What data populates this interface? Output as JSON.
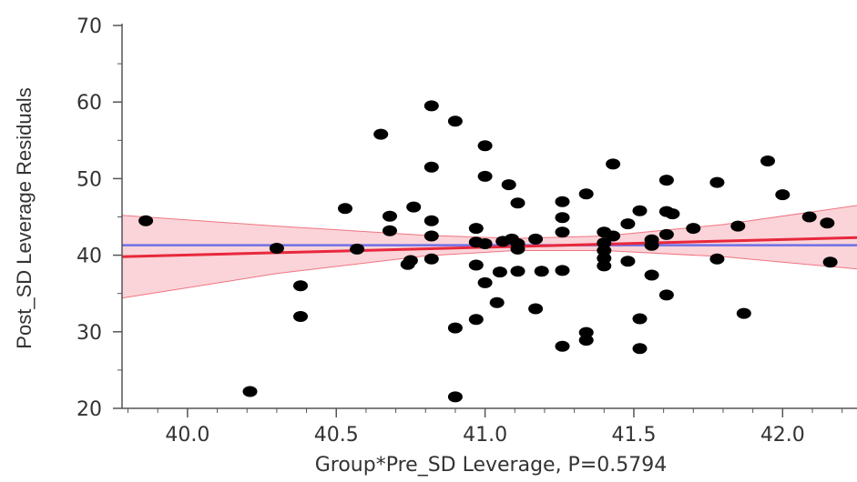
{
  "chart_data": {
    "type": "scatter",
    "title": "",
    "xlabel": "Group*Pre_SD Leverage, P=0.5794",
    "ylabel": "Post_SD Leverage Residuals",
    "xlim": [
      39.78,
      42.25
    ],
    "ylim": [
      20,
      70
    ],
    "xticks": [
      40.0,
      40.5,
      41.0,
      41.5,
      42.0
    ],
    "xtick_labels": [
      "40.0",
      "40.5",
      "41.0",
      "41.5",
      "42.0"
    ],
    "yticks": [
      20,
      30,
      40,
      50,
      60,
      70
    ],
    "ytick_labels": [
      "20",
      "30",
      "40",
      "50",
      "60",
      "70"
    ],
    "grid": false,
    "colors": {
      "points": "#000000",
      "fit_line": "#e8283c",
      "mean_line": "#6f6fe6",
      "confidence_band": "#f5a0ab"
    },
    "points": [
      {
        "x": 39.86,
        "y": 44.5
      },
      {
        "x": 40.21,
        "y": 22.2
      },
      {
        "x": 40.3,
        "y": 40.9
      },
      {
        "x": 40.38,
        "y": 36.0
      },
      {
        "x": 40.38,
        "y": 32.0
      },
      {
        "x": 40.53,
        "y": 46.1
      },
      {
        "x": 40.57,
        "y": 40.8
      },
      {
        "x": 40.65,
        "y": 55.8
      },
      {
        "x": 40.68,
        "y": 45.1
      },
      {
        "x": 40.68,
        "y": 43.2
      },
      {
        "x": 40.74,
        "y": 38.8
      },
      {
        "x": 40.75,
        "y": 39.3
      },
      {
        "x": 40.76,
        "y": 46.3
      },
      {
        "x": 40.82,
        "y": 59.5
      },
      {
        "x": 40.82,
        "y": 51.5
      },
      {
        "x": 40.82,
        "y": 44.5
      },
      {
        "x": 40.82,
        "y": 42.5
      },
      {
        "x": 40.82,
        "y": 39.5
      },
      {
        "x": 40.9,
        "y": 57.5
      },
      {
        "x": 40.9,
        "y": 30.5
      },
      {
        "x": 40.9,
        "y": 21.5
      },
      {
        "x": 40.97,
        "y": 43.5
      },
      {
        "x": 40.97,
        "y": 41.7
      },
      {
        "x": 40.97,
        "y": 38.7
      },
      {
        "x": 40.97,
        "y": 31.6
      },
      {
        "x": 41.0,
        "y": 54.3
      },
      {
        "x": 41.0,
        "y": 50.3
      },
      {
        "x": 41.0,
        "y": 41.5
      },
      {
        "x": 41.0,
        "y": 36.4
      },
      {
        "x": 41.04,
        "y": 33.8
      },
      {
        "x": 41.05,
        "y": 37.8
      },
      {
        "x": 41.06,
        "y": 41.8
      },
      {
        "x": 41.08,
        "y": 49.2
      },
      {
        "x": 41.09,
        "y": 42.1
      },
      {
        "x": 41.11,
        "y": 46.8
      },
      {
        "x": 41.11,
        "y": 41.5
      },
      {
        "x": 41.11,
        "y": 40.8
      },
      {
        "x": 41.11,
        "y": 37.9
      },
      {
        "x": 41.17,
        "y": 42.1
      },
      {
        "x": 41.17,
        "y": 33.0
      },
      {
        "x": 41.19,
        "y": 37.9
      },
      {
        "x": 41.26,
        "y": 47.0
      },
      {
        "x": 41.26,
        "y": 44.9
      },
      {
        "x": 41.26,
        "y": 43.0
      },
      {
        "x": 41.26,
        "y": 38.0
      },
      {
        "x": 41.26,
        "y": 28.1
      },
      {
        "x": 41.34,
        "y": 48.0
      },
      {
        "x": 41.34,
        "y": 29.9
      },
      {
        "x": 41.34,
        "y": 28.9
      },
      {
        "x": 41.4,
        "y": 43.0
      },
      {
        "x": 41.4,
        "y": 41.6
      },
      {
        "x": 41.4,
        "y": 40.6
      },
      {
        "x": 41.4,
        "y": 39.6
      },
      {
        "x": 41.4,
        "y": 38.6
      },
      {
        "x": 41.43,
        "y": 51.9
      },
      {
        "x": 41.43,
        "y": 42.5
      },
      {
        "x": 41.48,
        "y": 44.1
      },
      {
        "x": 41.48,
        "y": 39.2
      },
      {
        "x": 41.52,
        "y": 45.8
      },
      {
        "x": 41.52,
        "y": 31.7
      },
      {
        "x": 41.52,
        "y": 27.8
      },
      {
        "x": 41.56,
        "y": 42.0
      },
      {
        "x": 41.56,
        "y": 41.3
      },
      {
        "x": 41.56,
        "y": 37.4
      },
      {
        "x": 41.61,
        "y": 49.8
      },
      {
        "x": 41.61,
        "y": 45.7
      },
      {
        "x": 41.61,
        "y": 42.7
      },
      {
        "x": 41.61,
        "y": 34.8
      },
      {
        "x": 41.63,
        "y": 45.4
      },
      {
        "x": 41.7,
        "y": 43.5
      },
      {
        "x": 41.78,
        "y": 49.5
      },
      {
        "x": 41.78,
        "y": 39.5
      },
      {
        "x": 41.85,
        "y": 43.8
      },
      {
        "x": 41.87,
        "y": 32.4
      },
      {
        "x": 41.95,
        "y": 52.3
      },
      {
        "x": 42.0,
        "y": 47.9
      },
      {
        "x": 42.09,
        "y": 45.0
      },
      {
        "x": 42.15,
        "y": 44.2
      },
      {
        "x": 42.16,
        "y": 39.1
      }
    ],
    "fit_line": {
      "x": [
        39.78,
        42.25
      ],
      "y": [
        39.8,
        42.3
      ]
    },
    "mean_line": {
      "y": 41.3
    },
    "confidence_band": {
      "x": [
        39.78,
        40.3,
        40.8,
        41.1,
        41.4,
        41.8,
        42.25
      ],
      "upper": [
        45.2,
        43.8,
        42.6,
        42.2,
        42.5,
        44.0,
        46.5
      ],
      "lower": [
        34.4,
        37.6,
        39.9,
        40.6,
        40.6,
        39.8,
        38.2
      ]
    }
  }
}
